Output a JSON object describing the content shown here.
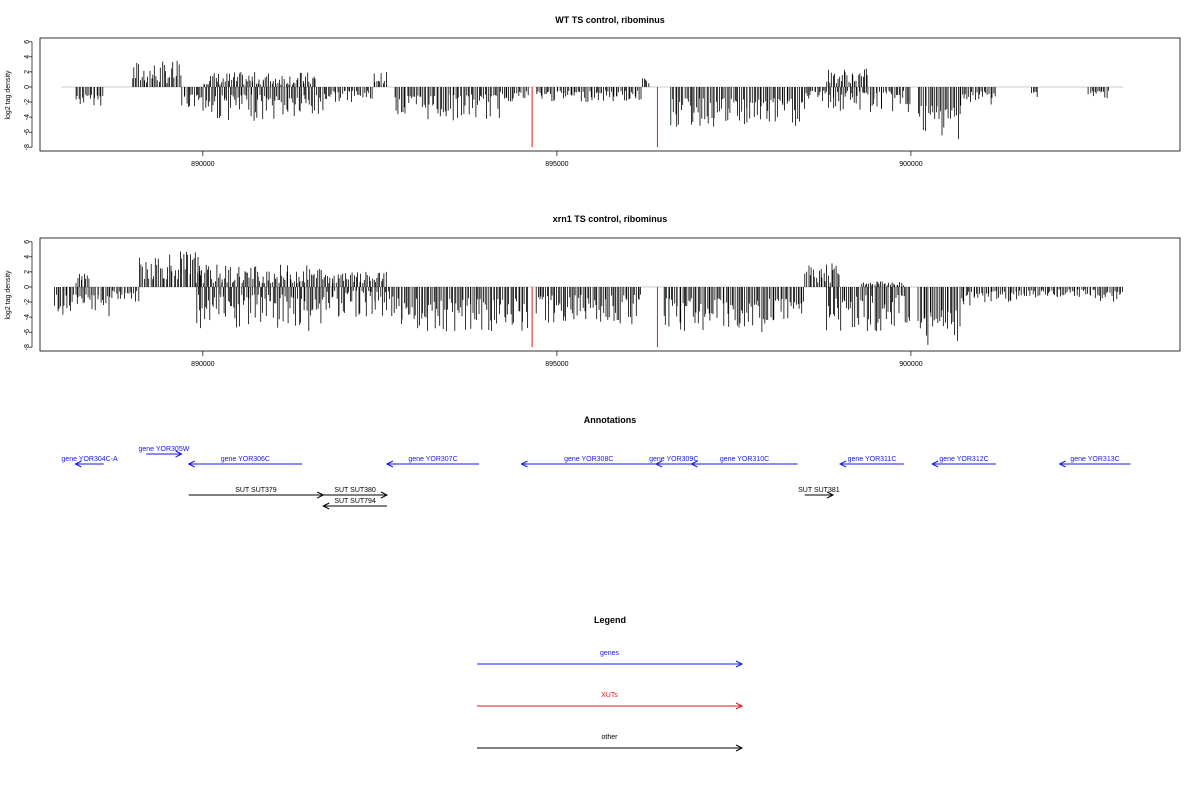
{
  "chart_data": [
    {
      "type": "bar",
      "title": "WT TS control, ribominus",
      "ylabel": "log2 tag density",
      "xlabel": "",
      "xlim": [
        887700,
        903800
      ],
      "ylim": [
        -8.5,
        6.5
      ],
      "yticks": [
        "6",
        "4",
        "2",
        "0",
        "-2",
        "-4",
        "-6",
        "-8"
      ],
      "xticks": [
        {
          "value": 890000,
          "label": "890000"
        },
        {
          "value": 895000,
          "label": "895000"
        },
        {
          "value": 900000,
          "label": "900000"
        }
      ],
      "colors": {
        "bars": "#000000",
        "xut_marks": "#e0191c",
        "baseline": "#bdbdbd"
      },
      "xut_marks": [
        {
          "x": 894650,
          "y": -8
        },
        {
          "x": 896420,
          "y": -8
        }
      ],
      "segments": [
        {
          "start": 888200,
          "end": 888600,
          "strand": "-",
          "min": 1.0,
          "max": 2.5
        },
        {
          "start": 889000,
          "end": 889700,
          "strand": "+",
          "min": 0.5,
          "max": 3.5
        },
        {
          "start": 889700,
          "end": 890000,
          "strand": "-",
          "min": 1.0,
          "max": 3.0
        },
        {
          "start": 890000,
          "end": 891600,
          "strand": "+",
          "min": 0.3,
          "max": 2.0
        },
        {
          "start": 890000,
          "end": 891700,
          "strand": "-",
          "min": 1.0,
          "max": 4.5
        },
        {
          "start": 891700,
          "end": 892400,
          "strand": "-",
          "min": 0.5,
          "max": 2.0
        },
        {
          "start": 892400,
          "end": 892600,
          "strand": "+",
          "min": 0.5,
          "max": 2.0
        },
        {
          "start": 892700,
          "end": 894200,
          "strand": "-",
          "min": 1.0,
          "max": 4.5
        },
        {
          "start": 894200,
          "end": 894600,
          "strand": "-",
          "min": 0.5,
          "max": 2.0
        },
        {
          "start": 894700,
          "end": 896200,
          "strand": "-",
          "min": 0.5,
          "max": 2.0
        },
        {
          "start": 896200,
          "end": 896300,
          "strand": "+",
          "min": 0.5,
          "max": 1.2
        },
        {
          "start": 896600,
          "end": 898500,
          "strand": "-",
          "min": 1.5,
          "max": 5.5
        },
        {
          "start": 898500,
          "end": 898800,
          "strand": "-",
          "min": 0.5,
          "max": 2.0
        },
        {
          "start": 898800,
          "end": 899400,
          "strand": "+",
          "min": 0.5,
          "max": 2.5
        },
        {
          "start": 898800,
          "end": 900000,
          "strand": "-",
          "min": 0.5,
          "max": 3.5
        },
        {
          "start": 900100,
          "end": 900700,
          "strand": "-",
          "min": 2.5,
          "max": 7.0
        },
        {
          "start": 900700,
          "end": 901200,
          "strand": "-",
          "min": 0.5,
          "max": 2.5
        },
        {
          "start": 901700,
          "end": 901800,
          "strand": "-",
          "min": 0.5,
          "max": 1.5
        },
        {
          "start": 902500,
          "end": 902800,
          "strand": "-",
          "min": 0.5,
          "max": 1.5
        }
      ]
    },
    {
      "type": "bar",
      "title": "xrn1 TS control, ribominus",
      "ylabel": "log2 tag density",
      "xlabel": "",
      "xlim": [
        887700,
        903800
      ],
      "ylim": [
        -8.5,
        6.5
      ],
      "yticks": [
        "6",
        "4",
        "2",
        "0",
        "-2",
        "-4",
        "-6",
        "-8"
      ],
      "xticks": [
        {
          "value": 890000,
          "label": "890000"
        },
        {
          "value": 895000,
          "label": "895000"
        },
        {
          "value": 900000,
          "label": "900000"
        }
      ],
      "colors": {
        "bars": "#000000",
        "xut_marks": "#e0191c",
        "baseline": "#bdbdbd"
      },
      "xut_marks": [
        {
          "x": 894650,
          "y": -8
        },
        {
          "x": 896420,
          "y": -8
        }
      ],
      "segments": [
        {
          "start": 887900,
          "end": 888700,
          "strand": "-",
          "min": 1.0,
          "max": 4.0
        },
        {
          "start": 888200,
          "end": 888400,
          "strand": "+",
          "min": 0.5,
          "max": 2.0
        },
        {
          "start": 888700,
          "end": 889100,
          "strand": "-",
          "min": 0.5,
          "max": 2.0
        },
        {
          "start": 889100,
          "end": 890000,
          "strand": "+",
          "min": 1.0,
          "max": 5.0
        },
        {
          "start": 889900,
          "end": 891700,
          "strand": "+",
          "min": 0.5,
          "max": 3.0
        },
        {
          "start": 889900,
          "end": 891700,
          "strand": "-",
          "min": 1.0,
          "max": 6.0
        },
        {
          "start": 891700,
          "end": 892700,
          "strand": "-",
          "min": 0.5,
          "max": 4.0
        },
        {
          "start": 891700,
          "end": 892600,
          "strand": "+",
          "min": 0.5,
          "max": 2.0
        },
        {
          "start": 892700,
          "end": 894600,
          "strand": "-",
          "min": 1.5,
          "max": 6.0
        },
        {
          "start": 894700,
          "end": 896200,
          "strand": "-",
          "min": 1.0,
          "max": 5.0
        },
        {
          "start": 896500,
          "end": 898500,
          "strand": "-",
          "min": 1.5,
          "max": 6.0
        },
        {
          "start": 898500,
          "end": 899000,
          "strand": "+",
          "min": 0.5,
          "max": 3.5
        },
        {
          "start": 898800,
          "end": 900000,
          "strand": "-",
          "min": 1.0,
          "max": 6.0
        },
        {
          "start": 899300,
          "end": 899900,
          "strand": "+",
          "min": 0.2,
          "max": 0.8
        },
        {
          "start": 900100,
          "end": 900700,
          "strand": "-",
          "min": 3.0,
          "max": 7.8
        },
        {
          "start": 900700,
          "end": 901600,
          "strand": "-",
          "min": 0.5,
          "max": 2.5
        },
        {
          "start": 901600,
          "end": 902600,
          "strand": "-",
          "min": 0.3,
          "max": 1.5
        },
        {
          "start": 902600,
          "end": 903000,
          "strand": "-",
          "min": 0.5,
          "max": 2.0
        }
      ]
    },
    {
      "type": "diagram",
      "title": "Annotations",
      "genes": [
        {
          "label": "gene YOR304C-A",
          "start": 888200,
          "end": 888600,
          "strand": "-"
        },
        {
          "label": "gene YOR305W",
          "start": 889200,
          "end": 889700,
          "strand": "+"
        },
        {
          "label": "gene YOR306C",
          "start": 889800,
          "end": 891400,
          "strand": "-"
        },
        {
          "label": "gene YOR307C",
          "start": 892600,
          "end": 893900,
          "strand": "-"
        },
        {
          "label": "gene YOR308C",
          "start": 894500,
          "end": 896400,
          "strand": "-"
        },
        {
          "label": "gene YOR309C",
          "start": 896400,
          "end": 896900,
          "strand": "-"
        },
        {
          "label": "gene YOR310C",
          "start": 896900,
          "end": 898400,
          "strand": "-"
        },
        {
          "label": "gene YOR311C",
          "start": 899000,
          "end": 899900,
          "strand": "-"
        },
        {
          "label": "gene YOR312C",
          "start": 900300,
          "end": 901200,
          "strand": "-"
        },
        {
          "label": "gene YOR313C",
          "start": 902100,
          "end": 903100,
          "strand": "-"
        }
      ],
      "others": [
        {
          "label": "SUT SUT379",
          "start": 889800,
          "end": 891700,
          "strand": "+"
        },
        {
          "label": "SUT SUT380",
          "start": 891700,
          "end": 892600,
          "strand": "+"
        },
        {
          "label": "SUT SUT794",
          "start": 891700,
          "end": 892600,
          "strand": "-"
        },
        {
          "label": "SUT SUT381",
          "start": 898500,
          "end": 898900,
          "strand": "+"
        }
      ]
    },
    {
      "type": "legend",
      "title": "Legend",
      "items": [
        {
          "label": "genes",
          "color": "#1515ee"
        },
        {
          "label": "XUTs",
          "color": "#e0191c"
        },
        {
          "label": "other",
          "color": "#000000"
        }
      ]
    }
  ]
}
